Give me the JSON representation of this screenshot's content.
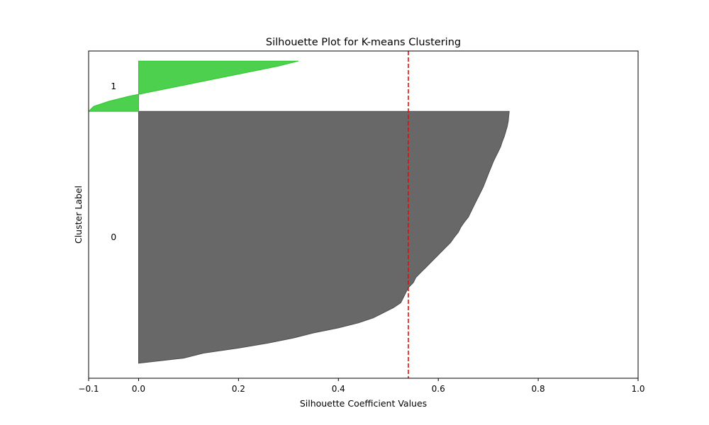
{
  "chart_data": {
    "type": "area",
    "title": "Silhouette Plot for K-means Clustering",
    "xlabel": "Silhouette Coefficient Values",
    "ylabel": "Cluster Label",
    "xlim": [
      -0.1,
      1.0
    ],
    "ylim": [
      0,
      65
    ],
    "xticks": [
      -0.1,
      0.0,
      0.2,
      0.4,
      0.6,
      0.8,
      1.0
    ],
    "xtick_labels": [
      "−0.1",
      "0.0",
      "0.2",
      "0.4",
      "0.6",
      "0.8",
      "1.0"
    ],
    "yticks": [],
    "grid": false,
    "average_silhouette_score": 0.54,
    "series": [
      {
        "cluster": "0",
        "color": "#4d4d4d",
        "y_lower": 3,
        "y_upper": 53,
        "values": [
          0.0,
          0.09,
          0.13,
          0.2,
          0.26,
          0.31,
          0.35,
          0.4,
          0.44,
          0.47,
          0.49,
          0.51,
          0.525,
          0.53,
          0.535,
          0.54,
          0.55,
          0.555,
          0.565,
          0.575,
          0.585,
          0.595,
          0.605,
          0.615,
          0.625,
          0.632,
          0.64,
          0.645,
          0.652,
          0.66,
          0.665,
          0.67,
          0.675,
          0.68,
          0.685,
          0.69,
          0.694,
          0.698,
          0.702,
          0.706,
          0.71,
          0.715,
          0.72,
          0.725,
          0.728,
          0.732,
          0.735,
          0.738,
          0.74,
          0.741,
          0.742
        ]
      },
      {
        "cluster": "1",
        "color": "#2ec82e",
        "y_lower": 53,
        "y_upper": 63,
        "values": [
          -0.1,
          -0.09,
          -0.06,
          -0.02,
          0.03,
          0.08,
          0.13,
          0.18,
          0.23,
          0.28,
          0.32
        ]
      }
    ],
    "reference_line": {
      "x": 0.54,
      "color": "#ff0000",
      "style": "dashed"
    },
    "cluster_labels": [
      {
        "text": "0",
        "x": -0.05,
        "y": 28
      },
      {
        "text": "1",
        "x": -0.05,
        "y": 58
      }
    ]
  }
}
